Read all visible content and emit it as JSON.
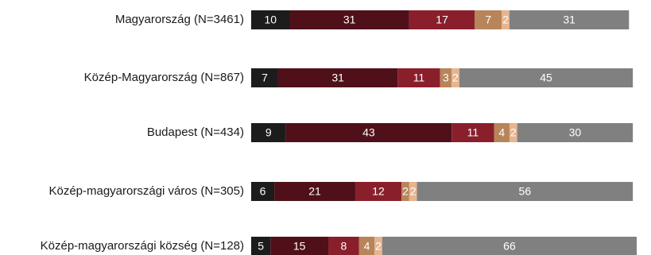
{
  "chart_data": {
    "type": "bar",
    "orientation": "horizontal",
    "stacked": true,
    "title": "",
    "xlabel": "",
    "ylabel": "",
    "categories": [
      "Magyarország (N=3461)",
      "Közép-Magyarország (N=867)",
      "Budapest (N=434)",
      "Közép-magyarországi város (N=305)",
      "Közép-magyarországi község (N=128)"
    ],
    "series": [
      {
        "color": "#1c1c1c",
        "values": [
          10,
          7,
          9,
          6,
          5
        ]
      },
      {
        "color": "#4f1019",
        "values": [
          31,
          31,
          43,
          21,
          15
        ]
      },
      {
        "color": "#8a1f2c",
        "values": [
          17,
          11,
          11,
          12,
          8
        ]
      },
      {
        "color": "#b8845a",
        "values": [
          7,
          3,
          4,
          2,
          4
        ]
      },
      {
        "color": "#e6b48e",
        "values": [
          2,
          2,
          2,
          2,
          2
        ]
      },
      {
        "color": "#808080",
        "values": [
          31,
          45,
          30,
          56,
          66
        ]
      }
    ],
    "xlim": [
      0,
      100
    ],
    "grid": false,
    "legend": "none"
  }
}
